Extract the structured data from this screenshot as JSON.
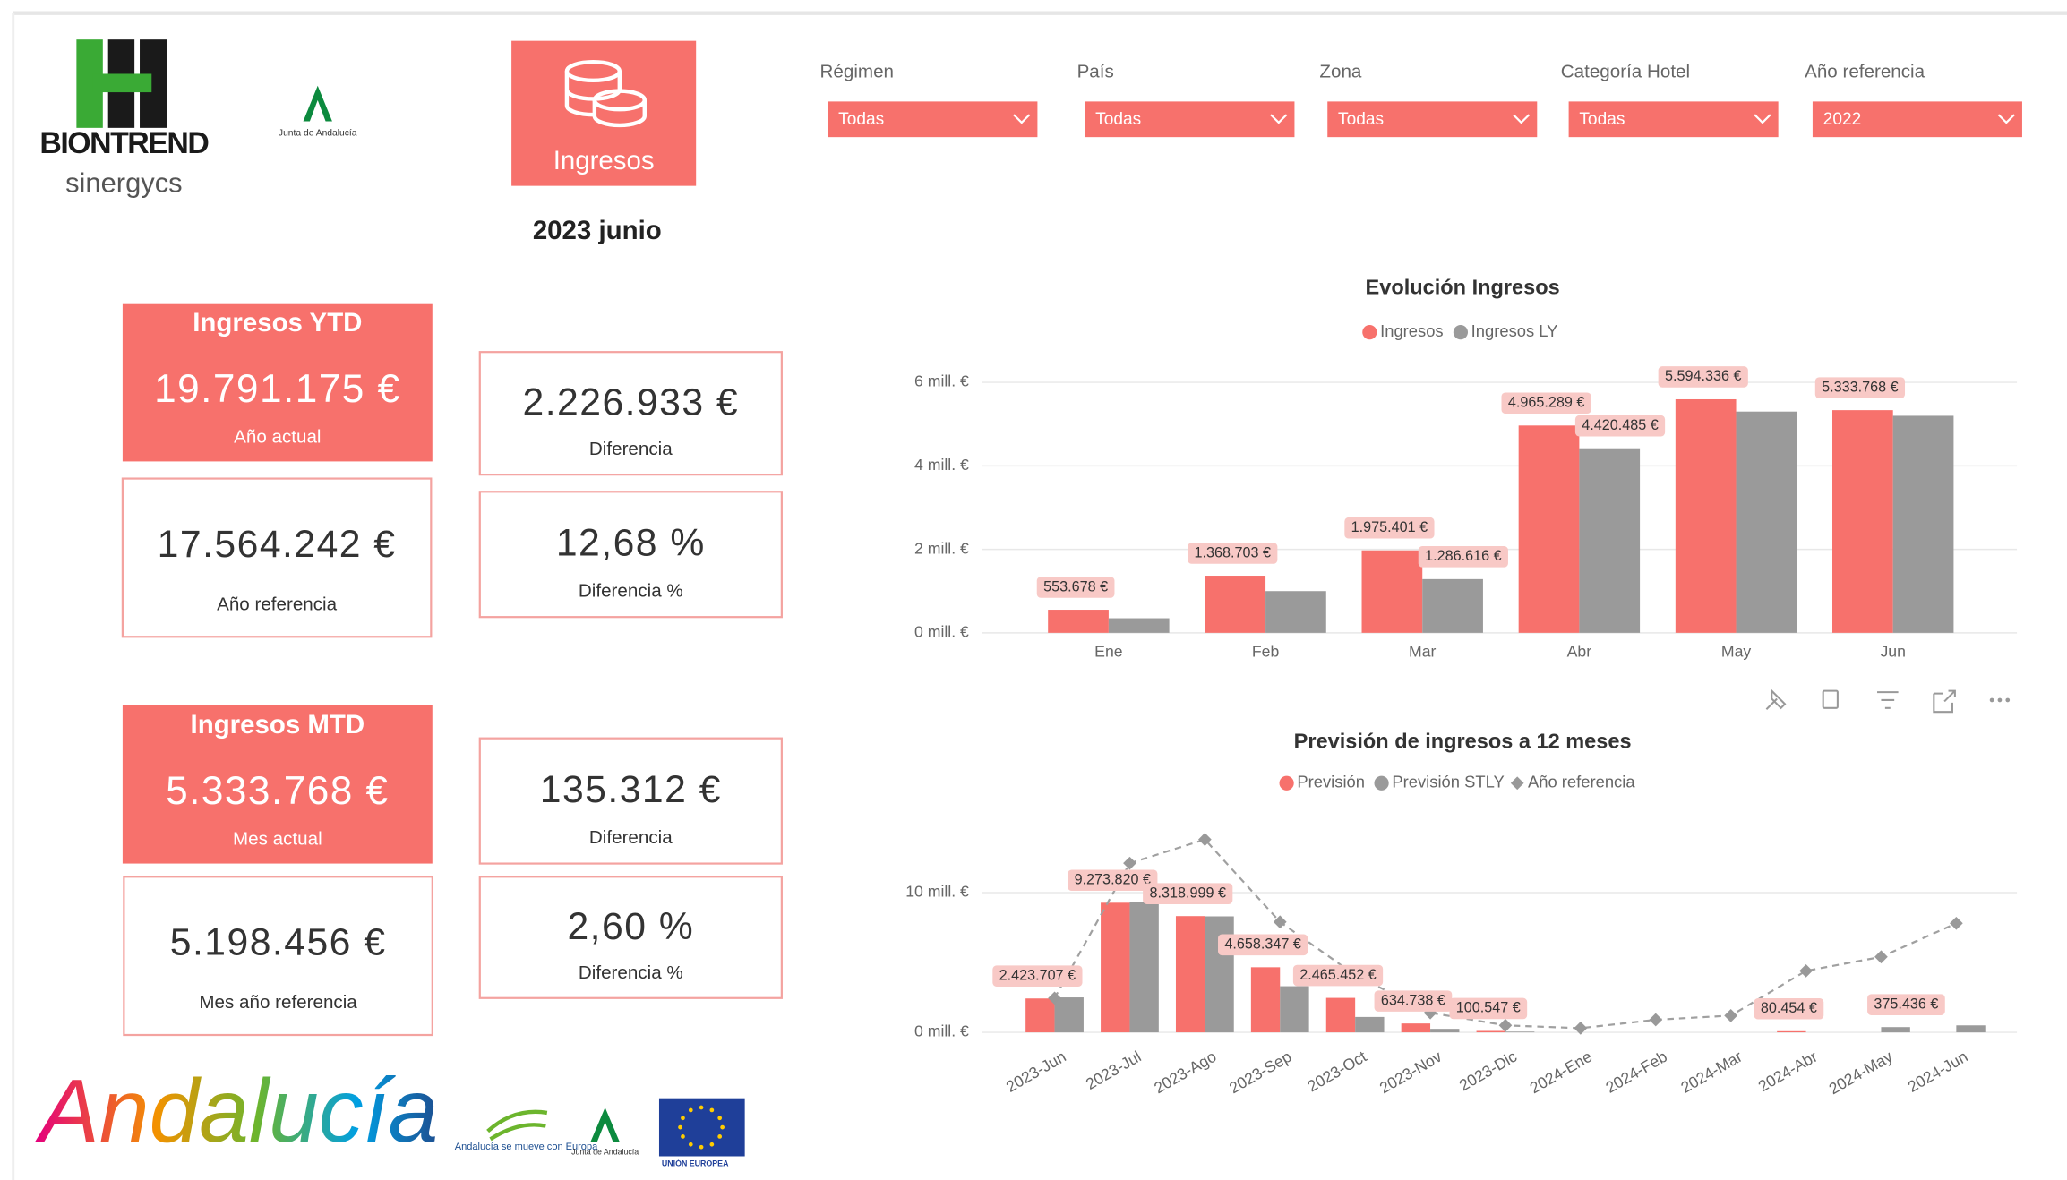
{
  "logos": {
    "brand": "BIONTREND",
    "brand_sub": "sinergycs",
    "junta": "Junta de Andalucía",
    "andalucia": "Andalucía",
    "andalucia_europa": "Andalucía se mueve con Europa",
    "ue": "UNIÓN EUROPEA"
  },
  "header": {
    "button": "Ingresos",
    "period": "2023 junio"
  },
  "filters": [
    {
      "label": "Régimen",
      "value": "Todas"
    },
    {
      "label": "País",
      "value": "Todas"
    },
    {
      "label": "Zona",
      "value": "Todas"
    },
    {
      "label": "Categoría Hotel",
      "value": "Todas"
    },
    {
      "label": "Año referencia",
      "value": "2022"
    }
  ],
  "kpis": [
    {
      "title": "Ingresos YTD",
      "current": {
        "value": "19.791.175 €",
        "label": "Año actual"
      },
      "reference": {
        "value": "17.564.242 €",
        "label": "Año referencia"
      },
      "difference": {
        "value": "2.226.933 €",
        "label": "Diferencia"
      },
      "difference_pct": {
        "value": "12,68 %",
        "label": "Diferencia %"
      }
    },
    {
      "title": "Ingresos MTD",
      "current": {
        "value": "5.333.768 €",
        "label": "Mes actual"
      },
      "reference": {
        "value": "5.198.456 €",
        "label": "Mes año referencia"
      },
      "difference": {
        "value": "135.312 €",
        "label": "Diferencia"
      },
      "difference_pct": {
        "value": "2,60 %",
        "label": "Diferencia %"
      }
    }
  ],
  "chart_data": [
    {
      "type": "bar",
      "title": "Evolución Ingresos",
      "categories": [
        "Ene",
        "Feb",
        "Mar",
        "Abr",
        "May",
        "Jun"
      ],
      "series": [
        {
          "name": "Ingresos",
          "color": "#f7716c",
          "values": [
            553678,
            1368703,
            1975401,
            4965289,
            5594336,
            5333768
          ],
          "value_labels": [
            "553.678 €",
            "1.368.703 €",
            "1.975.401 €",
            "4.965.289 €",
            "5.594.336 €",
            "5.333.768 €"
          ]
        },
        {
          "name": "Ingresos LY",
          "color": "#9a9a9a",
          "values": [
            350000,
            1000000,
            1286616,
            4420485,
            5300000,
            5198456
          ],
          "value_labels": [
            null,
            null,
            "1.286.616 €",
            "4.420.485 €",
            null,
            null
          ]
        }
      ],
      "ylim": [
        0,
        6000000
      ],
      "yticks": [
        {
          "value": 0,
          "label": "0 mill. €"
        },
        {
          "value": 2000000,
          "label": "2 mill. €"
        },
        {
          "value": 4000000,
          "label": "4 mill. €"
        },
        {
          "value": 6000000,
          "label": "6 mill. €"
        }
      ],
      "grid": true,
      "legend": "top"
    },
    {
      "type": "combo",
      "title": "Previsión de ingresos a 12 meses",
      "categories": [
        "2023-Jun",
        "2023-Jul",
        "2023-Ago",
        "2023-Sep",
        "2023-Oct",
        "2023-Nov",
        "2023-Dic",
        "2024-Ene",
        "2024-Feb",
        "2024-Mar",
        "2024-Abr",
        "2024-May",
        "2024-Jun"
      ],
      "series": [
        {
          "name": "Previsión",
          "color": "#f7716c",
          "type": "bar",
          "values": [
            2423707,
            9273820,
            8318999,
            4658347,
            2465452,
            634738,
            100547,
            null,
            null,
            null,
            80454,
            null,
            null
          ],
          "value_labels": [
            "2.423.707 €",
            "9.273.820 €",
            "8.318.999 €",
            "4.658.347 €",
            "2.465.452 €",
            "634.738 €",
            "100.547 €",
            null,
            null,
            null,
            "80.454 €",
            null,
            null
          ]
        },
        {
          "name": "Previsión STLY",
          "color": "#9a9a9a",
          "type": "bar",
          "values": [
            2500000,
            9300000,
            8300000,
            3300000,
            1100000,
            250000,
            50000,
            null,
            null,
            null,
            null,
            375436,
            500000
          ],
          "value_labels": [
            null,
            null,
            null,
            null,
            null,
            null,
            null,
            null,
            null,
            null,
            null,
            "375.436 €",
            null
          ]
        },
        {
          "name": "Año referencia",
          "color": "#a0a0a0",
          "type": "line",
          "values": [
            2450000,
            12100000,
            13800000,
            7900000,
            4100000,
            1400000,
            500000,
            300000,
            900000,
            1200000,
            4400000,
            5400000,
            7800000
          ]
        }
      ],
      "ylim": [
        0,
        14500000
      ],
      "yticks": [
        {
          "value": 0,
          "label": "0 mill. €"
        },
        {
          "value": 10000000,
          "label": "10 mill. €"
        }
      ],
      "grid": true,
      "legend": "top"
    }
  ]
}
